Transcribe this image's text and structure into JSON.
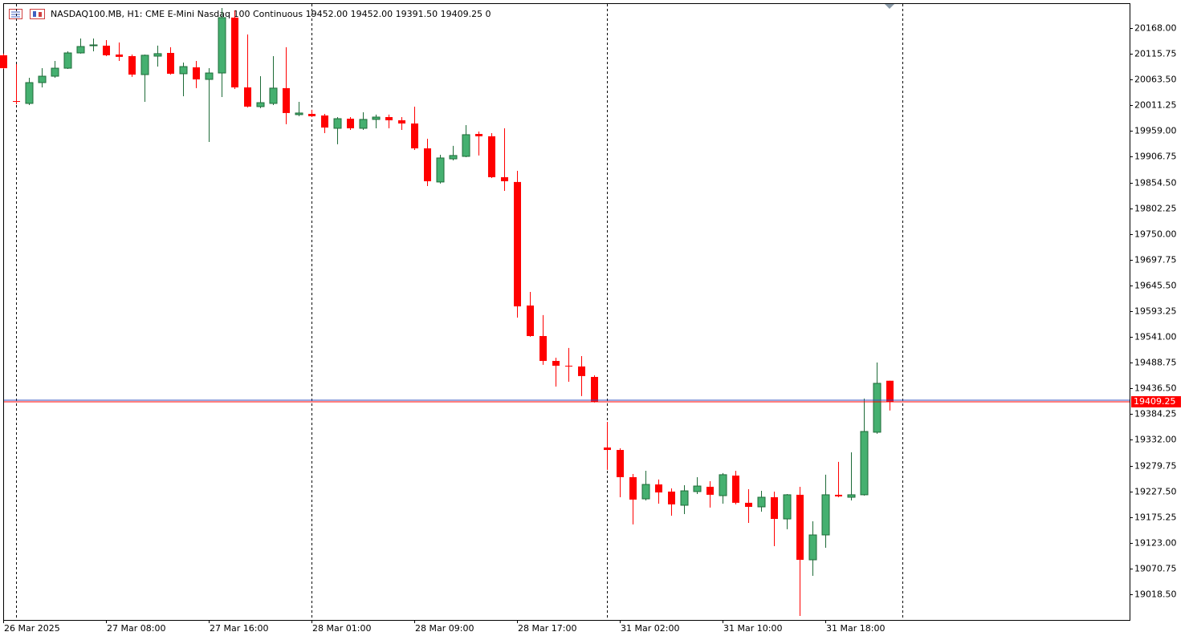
{
  "chart_data": {
    "type": "candlestick",
    "title": "NASDAQ100.MB, H1:  CME E-Mini Nasdaq 100 Continuous  19452.00 19452.00 19391.50 19409.25  0",
    "up_color": "#45b070",
    "up_wick_color": "#1e6b38",
    "down_color": "#ff0000",
    "last_price": 19409.25,
    "last_price_color": "#ff0000",
    "ylim": [
      18966.4,
      20216.8
    ],
    "yticks": [
      {
        "value": 20168,
        "label": "20168.00"
      },
      {
        "value": 20115.75,
        "label": "20115.75"
      },
      {
        "value": 20063.5,
        "label": "20063.50"
      },
      {
        "value": 20011.25,
        "label": "20011.25"
      },
      {
        "value": 19959,
        "label": "19959.00"
      },
      {
        "value": 19906.75,
        "label": "19906.75"
      },
      {
        "value": 19854.5,
        "label": "19854.50"
      },
      {
        "value": 19802.25,
        "label": "19802.25"
      },
      {
        "value": 19750,
        "label": "19750.00"
      },
      {
        "value": 19697.75,
        "label": "19697.75"
      },
      {
        "value": 19645.5,
        "label": "19645.50"
      },
      {
        "value": 19593.25,
        "label": "19593.25"
      },
      {
        "value": 19541,
        "label": "19541.00"
      },
      {
        "value": 19488.75,
        "label": "19488.75"
      },
      {
        "value": 19436.5,
        "label": "19436.50"
      },
      {
        "value": 19384.25,
        "label": "19384.25"
      },
      {
        "value": 19332,
        "label": "19332.00"
      },
      {
        "value": 19279.75,
        "label": "19279.75"
      },
      {
        "value": 19227.5,
        "label": "19227.50"
      },
      {
        "value": 19175.25,
        "label": "19175.25"
      },
      {
        "value": 19123,
        "label": "19123.00"
      },
      {
        "value": 19070.75,
        "label": "19070.75"
      },
      {
        "value": 19018.5,
        "label": "19018.50"
      }
    ],
    "grid": false,
    "categories": [
      "26 Mar 2025",
      null,
      null,
      null,
      null,
      null,
      null,
      null,
      "27 Mar 08:00",
      null,
      null,
      null,
      null,
      null,
      null,
      null,
      "27 Mar 16:00",
      null,
      null,
      null,
      null,
      null,
      null,
      null,
      "28 Mar 01:00",
      null,
      null,
      null,
      null,
      null,
      null,
      null,
      "28 Mar 09:00",
      null,
      null,
      null,
      null,
      null,
      null,
      null,
      "28 Mar 17:00",
      null,
      null,
      null,
      null,
      null,
      null,
      null,
      "31 Mar 02:00",
      null,
      null,
      null,
      null,
      null,
      null,
      null,
      "31 Mar 10:00",
      null,
      null,
      null,
      null,
      null,
      null,
      null,
      "31 Mar 18:00",
      null,
      null,
      null,
      null,
      null
    ],
    "open": [
      20112.75,
      20019.75,
      20015,
      20057.25,
      20070.25,
      20086.5,
      20117.5,
      20132.25,
      20132.25,
      20114.25,
      20111,
      20073.5,
      20111,
      20117.5,
      20075.25,
      20088.25,
      20063.75,
      20076.75,
      20189.25,
      20047.5,
      20008.5,
      20015,
      20046,
      19992.25,
      19993.75,
      19990.5,
      19964.5,
      19984,
      19964.5,
      19982.5,
      19987.25,
      19980.75,
      19974.25,
      19923.75,
      19855.5,
      19902.5,
      19907.5,
      19953,
      19948.25,
      19865.25,
      19855.5,
      19604.75,
      19542.75,
      19492.25,
      19482.5,
      19481,
      19459.75,
      19316.5,
      19311.5,
      19256.25,
      19212.25,
      19241.5,
      19227,
      19199.25,
      19227,
      19236.75,
      19218.75,
      19259.5,
      19204.25,
      19196,
      19215.5,
      19171.5,
      19220.5,
      19088.5,
      19139,
      19220.5,
      19215.5,
      19220.5,
      19347.5,
      19452
    ],
    "high": [
      20116,
      20094.75,
      20067,
      20086.5,
      20101.25,
      20120.75,
      20146.75,
      20146.75,
      20143.5,
      20138.75,
      20114.25,
      20114.25,
      20132.25,
      20129,
      20098,
      20101.25,
      20086.5,
      20208.75,
      20203.75,
      20155,
      20070.25,
      20111,
      20129,
      20018.25,
      20002,
      19993.75,
      19987.25,
      19987.25,
      19997,
      19992.25,
      19992.25,
      19987.25,
      20008.5,
      19943.25,
      19910.75,
      19928.75,
      19971,
      19958,
      19954.75,
      19964.5,
      19878.25,
      19632.25,
      19585.25,
      19498.75,
      19518.5,
      19502,
      19463,
      19368.5,
      19314.75,
      19262.75,
      19269.25,
      19251.5,
      19233.5,
      19240,
      19256.25,
      19248,
      19264.5,
      19269.25,
      19231.75,
      19228.5,
      19227,
      19222,
      19236.75,
      19166.75,
      19261.25,
      19287.25,
      19306.75,
      19415.75,
      19489,
      19452
    ],
    "low": [
      20085,
      20013.25,
      20011.75,
      20047.5,
      20067,
      20085,
      20116,
      20120.75,
      20111,
      20101.25,
      20068.75,
      20018.25,
      20089.75,
      20073.5,
      20029.5,
      20046,
      19936.75,
      20028,
      20044.25,
      20006.75,
      20005.25,
      20011.75,
      19972.75,
      19989,
      19987.25,
      19954.75,
      19932,
      19961.25,
      19961.25,
      19964.5,
      19964.5,
      19961.25,
      19920.5,
      19847.25,
      19852.25,
      19899.25,
      19905.75,
      19909.25,
      19863.5,
      19837.5,
      19580.25,
      19541.25,
      19484.25,
      19440.25,
      19450,
      19420.75,
      19407.75,
      19271,
      19215.5,
      19160.25,
      19209,
      19202.5,
      19178,
      19181.25,
      19222,
      19194.5,
      19202.5,
      19201,
      19163.5,
      19186.25,
      19116.25,
      19150.5,
      18974.5,
      19056,
      19113,
      19215.5,
      19209,
      19218.75,
      19344.25,
      19391.5
    ],
    "close": [
      20086.5,
      20018.25,
      20057.25,
      20070.25,
      20086.5,
      20117.5,
      20130.5,
      20133.75,
      20112.75,
      20109.5,
      20073.5,
      20112.75,
      20116,
      20075.25,
      20089.75,
      20063.75,
      20076.75,
      20189.25,
      20047.5,
      20008.5,
      20016.5,
      20046,
      19995.5,
      19995.5,
      19989,
      19966,
      19984,
      19964.5,
      19982.5,
      19987.25,
      19980.75,
      19974.25,
      19923.75,
      19857,
      19904.25,
      19909.25,
      19951.5,
      19948.25,
      19865.25,
      19857,
      19603,
      19542.75,
      19492.25,
      19482.5,
      19481,
      19461.5,
      19409.25,
      19311.5,
      19256.25,
      19210.75,
      19241.5,
      19225.25,
      19201,
      19228.5,
      19238.25,
      19220.5,
      19261.25,
      19204.25,
      19196,
      19215.5,
      19171.5,
      19220.5,
      19088.5,
      19139,
      19220.5,
      19217.25,
      19220.5,
      19349,
      19446.75,
      19409.25
    ]
  }
}
